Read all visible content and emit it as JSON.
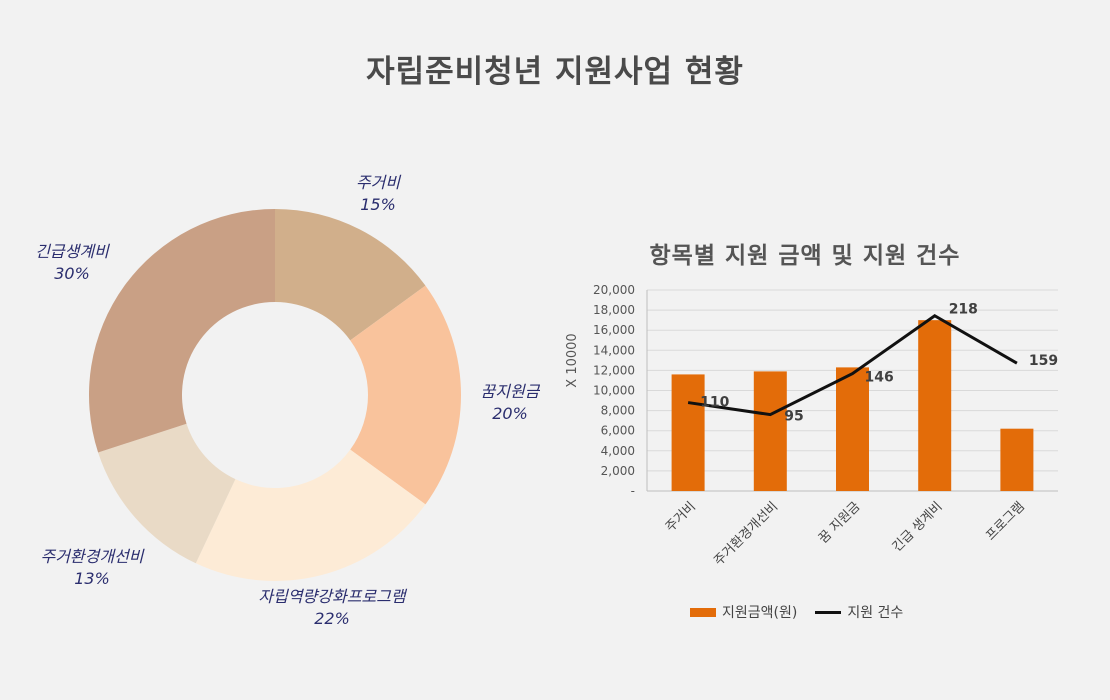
{
  "page": {
    "title": "자립준비청년 지원사업 현황"
  },
  "chart_data": [
    {
      "type": "pie",
      "variant": "donut",
      "title": "",
      "categories": [
        "주거비",
        "꿈지원금",
        "자립역량강화프로그램",
        "주거환경개선비",
        "긴급생계비"
      ],
      "values": [
        15,
        20,
        22,
        13,
        30
      ],
      "value_labels": [
        "15%",
        "20%",
        "22%",
        "13%",
        "30%"
      ],
      "colors": [
        "#d1af8b",
        "#f9c39c",
        "#fdebd6",
        "#e9dac6",
        "#c9a085"
      ],
      "label_color": "#2a2d6e"
    },
    {
      "type": "bar+line",
      "title": "항목별 지원 금액 및 지원 건수",
      "categories": [
        "주거비",
        "주거환경개선비",
        "꿈 지원금",
        "긴급 생계비",
        "프로그램"
      ],
      "ylabel": "X 10000",
      "ylim": [
        0,
        20000
      ],
      "yticks": [
        "-",
        "2,000",
        "4,000",
        "6,000",
        "8,000",
        "10,000",
        "12,000",
        "14,000",
        "16,000",
        "18,000",
        "20,000"
      ],
      "grid": true,
      "legend_position": "bottom",
      "series": [
        {
          "name": "지원금액(원)",
          "type": "bar",
          "color": "#e36c09",
          "values": [
            11600,
            11900,
            12300,
            17000,
            6200
          ]
        },
        {
          "name": "지원 건수",
          "type": "line",
          "color": "#111111",
          "values": [
            110,
            95,
            146,
            218,
            159
          ],
          "labels": [
            "110",
            "95",
            "146",
            "218",
            "159"
          ]
        }
      ]
    }
  ]
}
